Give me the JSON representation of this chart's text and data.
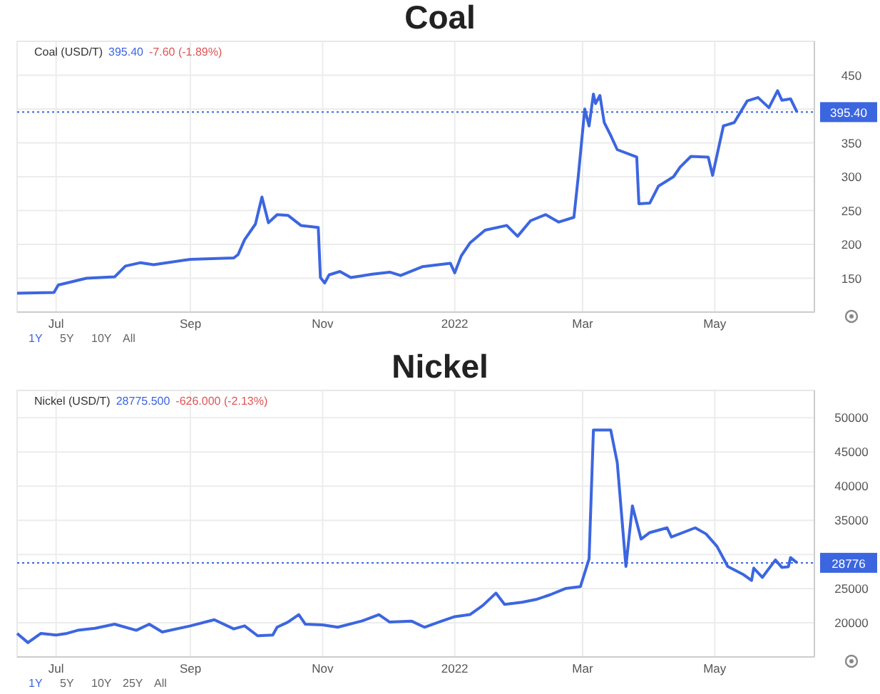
{
  "chart_data": [
    {
      "type": "line",
      "title": "Coal",
      "annotations": [
        "Coal (USD/T)",
        "395.40",
        "-7.60 (-1.89%)",
        "1Y",
        "5Y",
        "10Y",
        "All"
      ],
      "x": [
        "2021-06-13",
        "2021-06-30",
        "2021-07-02",
        "2021-07-15",
        "2021-07-28",
        "2021-08-02",
        "2021-08-09",
        "2021-08-15",
        "2021-09-01",
        "2021-09-21",
        "2021-09-23",
        "2021-09-26",
        "2021-10-01",
        "2021-10-04",
        "2021-10-07",
        "2021-10-11",
        "2021-10-16",
        "2021-10-22",
        "2021-10-30",
        "2021-10-31",
        "2021-11-02",
        "2021-11-04",
        "2021-11-09",
        "2021-11-14",
        "2021-11-24",
        "2021-12-02",
        "2021-12-07",
        "2021-12-17",
        "2021-12-30",
        "2022-01-01",
        "2022-01-04",
        "2022-01-08",
        "2022-01-15",
        "2022-01-25",
        "2022-01-30",
        "2022-02-05",
        "2022-02-12",
        "2022-02-18",
        "2022-02-25",
        "2022-02-27",
        "2022-03-02",
        "2022-03-04",
        "2022-03-06",
        "2022-03-07",
        "2022-03-09",
        "2022-03-11",
        "2022-03-14",
        "2022-03-17",
        "2022-03-26",
        "2022-03-27",
        "2022-04-01",
        "2022-04-05",
        "2022-04-12",
        "2022-04-15",
        "2022-04-20",
        "2022-04-28",
        "2022-04-30",
        "2022-05-05",
        "2022-05-10",
        "2022-05-16",
        "2022-05-21",
        "2022-05-26",
        "2022-05-30",
        "2022-06-01",
        "2022-06-05",
        "2022-06-08"
      ],
      "series": [
        {
          "color": "#3c66e0",
          "values": [
            128,
            129,
            140,
            150,
            152,
            168,
            173,
            170,
            178,
            180,
            185,
            207,
            230,
            270,
            232,
            244,
            243,
            228,
            225,
            151,
            143,
            155,
            160,
            151,
            156,
            159,
            154,
            167,
            172,
            158,
            183,
            202,
            221,
            228,
            212,
            235,
            244,
            233,
            240,
            300,
            400,
            375,
            422,
            408,
            420,
            380,
            361,
            340,
            329,
            260,
            261,
            286,
            300,
            314,
            330,
            329,
            302,
            375,
            380,
            412,
            417,
            402,
            427,
            413,
            415,
            395.4
          ]
        }
      ],
      "xlim": [
        "2021-06-13",
        "2022-06-16"
      ],
      "xticks": [
        {
          "value": "2021-07-01",
          "label": "Jul"
        },
        {
          "value": "2021-09-01",
          "label": "Sep"
        },
        {
          "value": "2021-11-01",
          "label": "Nov"
        },
        {
          "value": "2022-01-01",
          "label": "2022"
        },
        {
          "value": "2022-03-01",
          "label": "Mar"
        },
        {
          "value": "2022-05-01",
          "label": "May"
        }
      ],
      "ylim": [
        100,
        500
      ],
      "yticks": [
        150,
        200,
        250,
        300,
        350,
        {
          "value": 400,
          "label": null
        },
        450
      ],
      "grid": true,
      "ref_lines": [
        {
          "axis": "y",
          "value": 395.4,
          "label": "395.40",
          "color": "#3c66e0",
          "line_style": "dotted"
        }
      ]
    },
    {
      "type": "line",
      "title": "Nickel",
      "annotations": [
        "Nickel (USD/T)",
        "28775.500",
        "-626.000 (-2.13%)",
        "1Y",
        "5Y",
        "10Y",
        "25Y",
        "All"
      ],
      "x": [
        "2021-06-13",
        "2021-06-18",
        "2021-06-24",
        "2021-07-01",
        "2021-07-06",
        "2021-07-11",
        "2021-07-19",
        "2021-07-28",
        "2021-08-07",
        "2021-08-13",
        "2021-08-19",
        "2021-09-01",
        "2021-09-12",
        "2021-09-21",
        "2021-09-26",
        "2021-10-02",
        "2021-10-09",
        "2021-10-11",
        "2021-10-16",
        "2021-10-21",
        "2021-10-24",
        "2021-11-01",
        "2021-11-08",
        "2021-11-19",
        "2021-11-27",
        "2021-12-02",
        "2021-12-12",
        "2021-12-18",
        "2021-12-26",
        "2022-01-01",
        "2022-01-08",
        "2022-01-14",
        "2022-01-20",
        "2022-01-24",
        "2022-02-01",
        "2022-02-08",
        "2022-02-14",
        "2022-02-21",
        "2022-02-28",
        "2022-03-04",
        "2022-03-06",
        "2022-03-14",
        "2022-03-17",
        "2022-03-21",
        "2022-03-24",
        "2022-03-28",
        "2022-04-01",
        "2022-04-09",
        "2022-04-11",
        "2022-04-22",
        "2022-04-27",
        "2022-05-02",
        "2022-05-07",
        "2022-05-14",
        "2022-05-18",
        "2022-05-19",
        "2022-05-23",
        "2022-05-29",
        "2022-06-01",
        "2022-06-04",
        "2022-06-05",
        "2022-06-08"
      ],
      "series": [
        {
          "color": "#3c66e0",
          "values": [
            18450,
            17100,
            18450,
            18200,
            18450,
            18900,
            19200,
            19800,
            18900,
            19800,
            18650,
            19550,
            20450,
            19100,
            19550,
            18100,
            18200,
            19350,
            20100,
            21200,
            19800,
            19700,
            19350,
            20250,
            21200,
            20100,
            20250,
            19350,
            20250,
            20900,
            21200,
            22550,
            24350,
            22700,
            23000,
            23450,
            24100,
            25000,
            25300,
            29350,
            48200,
            48200,
            43450,
            28250,
            37100,
            32250,
            33200,
            33900,
            32550,
            33900,
            33000,
            31200,
            28250,
            27100,
            26200,
            28000,
            26650,
            29200,
            28100,
            28200,
            29550,
            28775.5
          ]
        }
      ],
      "xlim": [
        "2021-06-13",
        "2022-06-16"
      ],
      "xticks": [
        {
          "value": "2021-07-01",
          "label": "Jul"
        },
        {
          "value": "2021-09-01",
          "label": "Sep"
        },
        {
          "value": "2021-11-01",
          "label": "Nov"
        },
        {
          "value": "2022-01-01",
          "label": "2022"
        },
        {
          "value": "2022-03-01",
          "label": "Mar"
        },
        {
          "value": "2022-05-01",
          "label": "May"
        }
      ],
      "ylim": [
        15000,
        54000
      ],
      "yticks": [
        20000,
        25000,
        {
          "value": 30000,
          "label": null
        },
        35000,
        40000,
        45000,
        50000
      ],
      "grid": true,
      "ref_lines": [
        {
          "axis": "y",
          "value": 28775.5,
          "label": "28776",
          "color": "#3c66e0",
          "line_style": "dotted"
        }
      ]
    }
  ]
}
